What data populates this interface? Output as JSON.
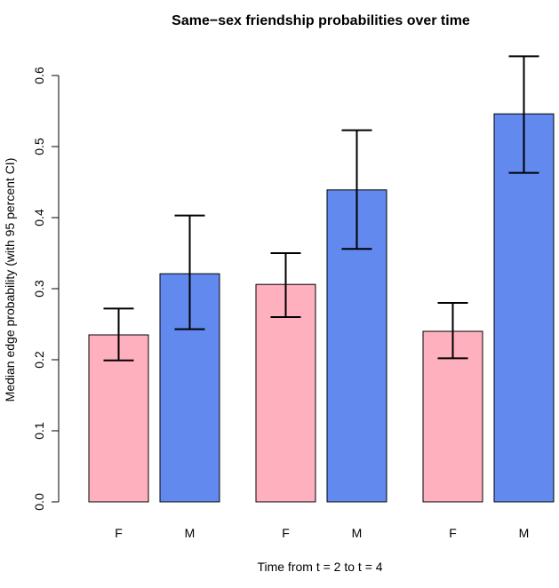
{
  "chart_data": {
    "type": "bar",
    "title": "Same−sex friendship probabilities over time",
    "xlabel": "Time from t = 2 to t = 4",
    "ylabel": "Median edge probability (with 95 percent CI)",
    "ylim": [
      0,
      0.6
    ],
    "yticks": [
      "0.0",
      "0.1",
      "0.2",
      "0.3",
      "0.4",
      "0.5",
      "0.6"
    ],
    "grid": false,
    "groups": [
      {
        "bars": [
          {
            "label": "F",
            "value": 0.235,
            "lower": 0.199,
            "upper": 0.272,
            "color": "#FFB0BE"
          },
          {
            "label": "M",
            "value": 0.321,
            "lower": 0.243,
            "upper": 0.403,
            "color": "#6189EE"
          }
        ]
      },
      {
        "bars": [
          {
            "label": "F",
            "value": 0.306,
            "lower": 0.26,
            "upper": 0.35,
            "color": "#FFB0BE"
          },
          {
            "label": "M",
            "value": 0.439,
            "lower": 0.356,
            "upper": 0.523,
            "color": "#6189EE"
          }
        ]
      },
      {
        "bars": [
          {
            "label": "F",
            "value": 0.24,
            "lower": 0.202,
            "upper": 0.28,
            "color": "#FFB0BE"
          },
          {
            "label": "M",
            "value": 0.546,
            "lower": 0.463,
            "upper": 0.627,
            "color": "#6189EE"
          }
        ]
      }
    ]
  }
}
